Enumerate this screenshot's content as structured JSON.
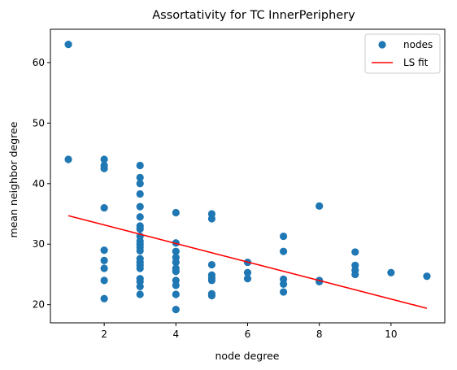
{
  "chart_data": {
    "type": "scatter",
    "title": "Assortativity for TC InnerPeriphery",
    "xlabel": "node degree",
    "ylabel": "mean neighbor degree",
    "xlim": [
      0.5,
      11.5
    ],
    "ylim": [
      17,
      65.5
    ],
    "xticks": [
      2,
      4,
      6,
      8,
      10
    ],
    "yticks": [
      20,
      30,
      40,
      50,
      60
    ],
    "grid": false,
    "legend_position": "top-right",
    "series": [
      {
        "name": "nodes",
        "kind": "scatter",
        "color": "#1f77b4",
        "points": [
          [
            1,
            63
          ],
          [
            1,
            44
          ],
          [
            2,
            44
          ],
          [
            2,
            43
          ],
          [
            2,
            42.5
          ],
          [
            2,
            36
          ],
          [
            2,
            29
          ],
          [
            2,
            27.3
          ],
          [
            2,
            26
          ],
          [
            2,
            24
          ],
          [
            2,
            21
          ],
          [
            3,
            43
          ],
          [
            3,
            41
          ],
          [
            3,
            40
          ],
          [
            3,
            38.3
          ],
          [
            3,
            36.2
          ],
          [
            3,
            34.5
          ],
          [
            3,
            33
          ],
          [
            3,
            32.5
          ],
          [
            3,
            31.3
          ],
          [
            3,
            30.5
          ],
          [
            3,
            30
          ],
          [
            3,
            29.5
          ],
          [
            3,
            28.9
          ],
          [
            3,
            27.6
          ],
          [
            3,
            27
          ],
          [
            3,
            26.5
          ],
          [
            3,
            26
          ],
          [
            3,
            24.3
          ],
          [
            3,
            23.8
          ],
          [
            3,
            23
          ],
          [
            3,
            21.7
          ],
          [
            4,
            35.2
          ],
          [
            4,
            30.2
          ],
          [
            4,
            28.8
          ],
          [
            4,
            27.8
          ],
          [
            4,
            27
          ],
          [
            4,
            26
          ],
          [
            4,
            25.5
          ],
          [
            4,
            24
          ],
          [
            4,
            23.2
          ],
          [
            4,
            21.7
          ],
          [
            4,
            19.2
          ],
          [
            5,
            35
          ],
          [
            5,
            34.2
          ],
          [
            5,
            26.6
          ],
          [
            5,
            24.9
          ],
          [
            5,
            24.4
          ],
          [
            5,
            24
          ],
          [
            5,
            21.8
          ],
          [
            5,
            21.5
          ],
          [
            6,
            27
          ],
          [
            6,
            25.3
          ],
          [
            6,
            24.3
          ],
          [
            7,
            31.3
          ],
          [
            7,
            28.8
          ],
          [
            7,
            24.2
          ],
          [
            7,
            23.4
          ],
          [
            7,
            22.1
          ],
          [
            8,
            36.3
          ],
          [
            8,
            24
          ],
          [
            8,
            23.8
          ],
          [
            9,
            28.7
          ],
          [
            9,
            26.5
          ],
          [
            9,
            25.7
          ],
          [
            9,
            25
          ],
          [
            10,
            25.3
          ],
          [
            11,
            24.7
          ]
        ]
      },
      {
        "name": "LS fit",
        "kind": "line",
        "color": "#ff0000",
        "points": [
          [
            1,
            34.7
          ],
          [
            11,
            19.4
          ]
        ]
      }
    ]
  }
}
